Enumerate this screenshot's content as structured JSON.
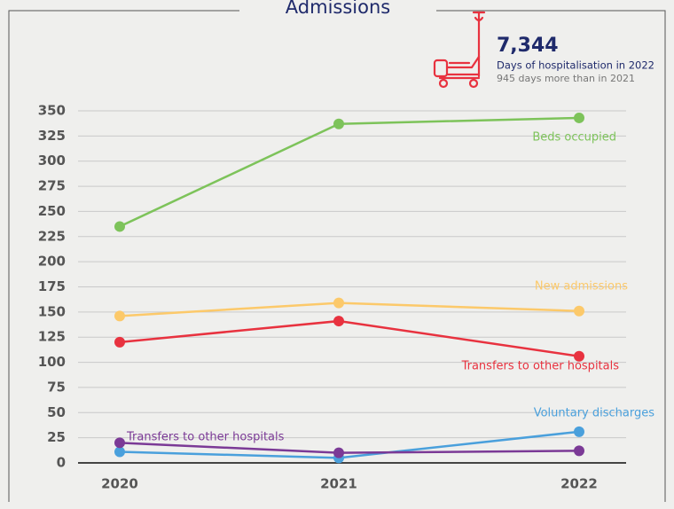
{
  "chart_data": {
    "type": "line",
    "title": "Admissions",
    "highlight": {
      "value": "7,344",
      "caption": "Days of hospitalisation in 2022",
      "note": "945 days more than in 2021"
    },
    "categories": [
      "2020",
      "2021",
      "2022"
    ],
    "series": [
      {
        "name": "Beds occupied",
        "color": "#7dc35a",
        "values": [
          235,
          337,
          343
        ]
      },
      {
        "name": "New admissions",
        "color": "#fcc96a",
        "values": [
          146,
          159,
          151
        ]
      },
      {
        "name": "Transfers to other hospitals",
        "color": "#e8323f",
        "values": [
          120,
          141,
          106
        ]
      },
      {
        "name": "Voluntary discharges",
        "color": "#4aa0dc",
        "values": [
          11,
          5,
          31
        ]
      },
      {
        "name": "Transfers to other hospitals",
        "color": "#7b3a96",
        "values": [
          20,
          10,
          12
        ]
      }
    ],
    "ylim": [
      0,
      350
    ],
    "yticks": [
      0,
      25,
      50,
      75,
      100,
      125,
      150,
      175,
      200,
      225,
      250,
      275,
      300,
      325,
      350
    ],
    "grid": true
  }
}
